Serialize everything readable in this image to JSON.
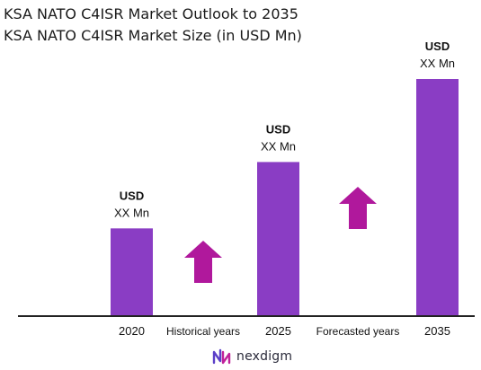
{
  "header": {
    "title": "KSA NATO C4ISR Market Outlook to 2035",
    "subtitle": "KSA NATO C4ISR Market Size (in USD Mn)"
  },
  "colors": {
    "bar": "#8a3dc4",
    "arrow": "#b0189c",
    "baseline": "#222222"
  },
  "chart_data": {
    "type": "bar",
    "title": "KSA NATO C4ISR Market Outlook to 2035",
    "subtitle": "KSA NATO C4ISR Market Size (in USD Mn)",
    "categories": [
      "2020",
      "2025",
      "2035"
    ],
    "relative_values": [
      0.37,
      0.65,
      1.0
    ],
    "bar_labels": [
      {
        "line1": "USD",
        "line2": "XX Mn"
      },
      {
        "line1": "USD",
        "line2": "XX Mn"
      },
      {
        "line1": "USD",
        "line2": "XX Mn"
      }
    ],
    "segments": [
      {
        "label": "Historical years",
        "icon": "up-arrow-icon"
      },
      {
        "label": "Forecasted years",
        "icon": "up-arrow-icon"
      }
    ],
    "grid": false,
    "legend": "none"
  },
  "brand": {
    "name": "nexdigm",
    "icon": "nexdigm-logo-icon"
  }
}
